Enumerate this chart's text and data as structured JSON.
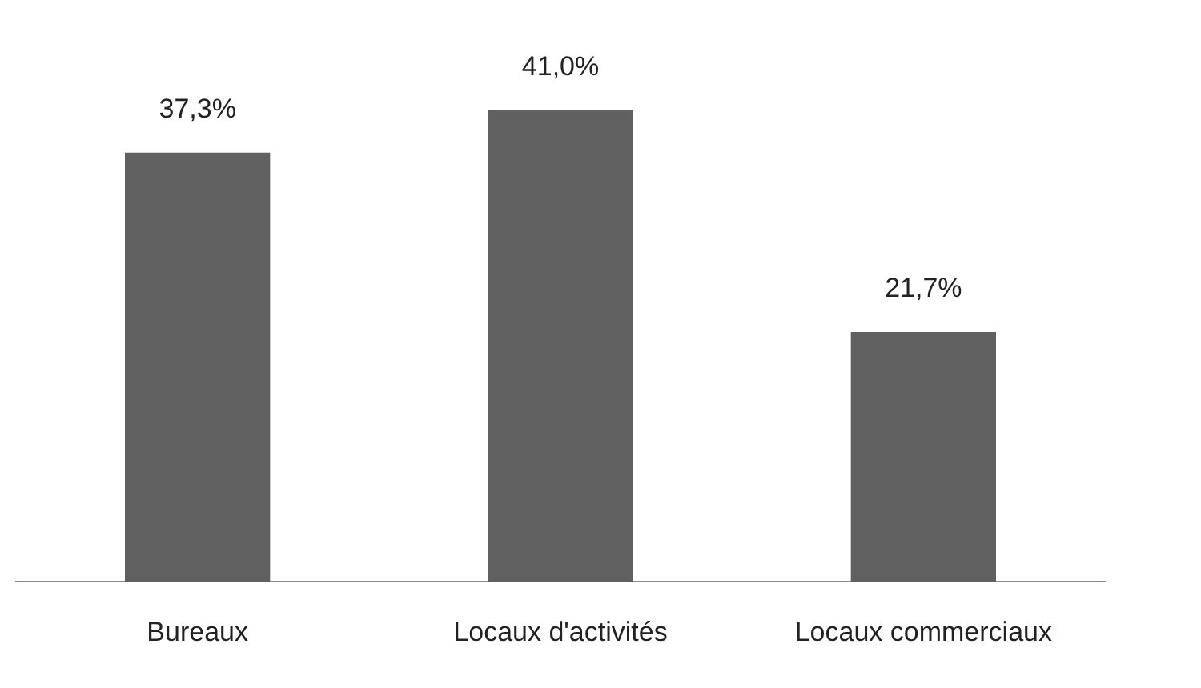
{
  "chart_data": {
    "type": "bar",
    "categories": [
      "Bureaux",
      "Locaux d'activités",
      "Locaux commerciaux"
    ],
    "values": [
      37.3,
      41.0,
      21.7
    ],
    "value_labels": [
      "37,3%",
      "41,0%",
      "21,7%"
    ],
    "color": "#606060",
    "legend": false,
    "grid": false
  }
}
